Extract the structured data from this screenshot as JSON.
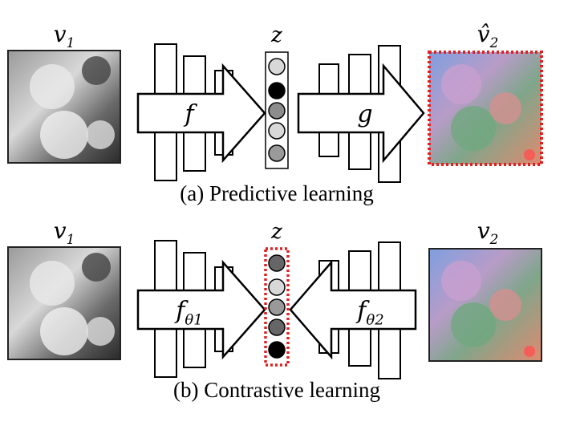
{
  "panels": [
    {
      "input": {
        "base": "v",
        "sub": "1"
      },
      "latent": "z",
      "output": {
        "base": "v̂",
        "sub": "2"
      },
      "left_net": {
        "base": "f"
      },
      "right_net": {
        "base": "g"
      },
      "caption": "(a) Predictive learning"
    },
    {
      "input": {
        "base": "v",
        "sub": "1"
      },
      "latent": "z",
      "output": {
        "base": "v",
        "sub": "2"
      },
      "left_net": {
        "base": "f",
        "sub": "θ1"
      },
      "right_net": {
        "base": "f",
        "sub": "θ2"
      },
      "caption": "(b) Contrastive learning"
    }
  ]
}
